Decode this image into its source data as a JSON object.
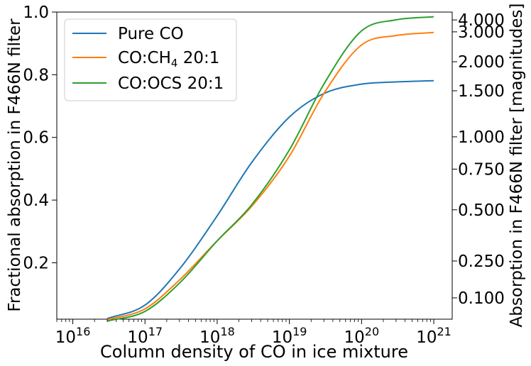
{
  "chart_data": {
    "type": "line",
    "xlabel": "Column density of CO in ice mixture",
    "ylabel": "Fractional absorption in F466N filter",
    "y2label": "Absorption in F466N filter [magnitudes]",
    "xscale": "log",
    "xlim": [
      6000000000000000.0,
      1.8e+21
    ],
    "ylim": [
      0.02,
      1.0
    ],
    "x_ticks": [
      {
        "value": 1e+16,
        "base": "10",
        "exp": "16"
      },
      {
        "value": 1e+17,
        "base": "10",
        "exp": "17"
      },
      {
        "value": 1e+18,
        "base": "10",
        "exp": "18"
      },
      {
        "value": 1e+19,
        "base": "10",
        "exp": "19"
      },
      {
        "value": 1e+20,
        "base": "10",
        "exp": "20"
      },
      {
        "value": 1e+21,
        "base": "10",
        "exp": "21"
      }
    ],
    "y_ticks": [
      {
        "value": 0.2,
        "label": "0.2"
      },
      {
        "value": 0.4,
        "label": "0.4"
      },
      {
        "value": 0.6,
        "label": "0.6"
      },
      {
        "value": 0.8,
        "label": "0.8"
      },
      {
        "value": 1.0,
        "label": "1.0"
      }
    ],
    "y2_ticks": [
      {
        "value": 0.1,
        "label": "0.100"
      },
      {
        "value": 0.25,
        "label": "0.250"
      },
      {
        "value": 0.5,
        "label": "0.500"
      },
      {
        "value": 0.75,
        "label": "0.750"
      },
      {
        "value": 1.0,
        "label": "1.000"
      },
      {
        "value": 1.5,
        "label": "1.500"
      },
      {
        "value": 2.0,
        "label": "2.000"
      },
      {
        "value": 3.0,
        "label": "3.000"
      },
      {
        "value": 4.0,
        "label": "4.000"
      }
    ],
    "legend_position": "top-left",
    "grid": false,
    "series": [
      {
        "name": "Pure CO",
        "color": "#1f77b4",
        "x": [
          3e+16,
          1e+17,
          3e+17,
          1e+18,
          3e+18,
          1e+19,
          3e+19,
          1e+20,
          3e+20,
          1e+21
        ],
        "y": [
          0.022,
          0.065,
          0.18,
          0.35,
          0.52,
          0.665,
          0.74,
          0.77,
          0.777,
          0.781
        ]
      },
      {
        "name": "CO:CH",
        "name_sub": "4",
        "name_suffix": " 20:1",
        "color": "#ff7f0e",
        "x": [
          3e+16,
          1e+17,
          3e+17,
          1e+18,
          3e+18,
          1e+19,
          3e+19,
          1e+20,
          3e+20,
          1e+21
        ],
        "y": [
          0.018,
          0.053,
          0.145,
          0.27,
          0.38,
          0.54,
          0.74,
          0.895,
          0.925,
          0.935
        ]
      },
      {
        "name": "CO:OCS 20:1",
        "color": "#2ca02c",
        "x": [
          3e+16,
          1e+17,
          3e+17,
          1e+18,
          3e+18,
          1e+19,
          3e+19,
          1e+20,
          3e+20,
          1e+21
        ],
        "y": [
          0.014,
          0.045,
          0.135,
          0.27,
          0.385,
          0.56,
          0.77,
          0.94,
          0.975,
          0.985
        ]
      }
    ]
  }
}
